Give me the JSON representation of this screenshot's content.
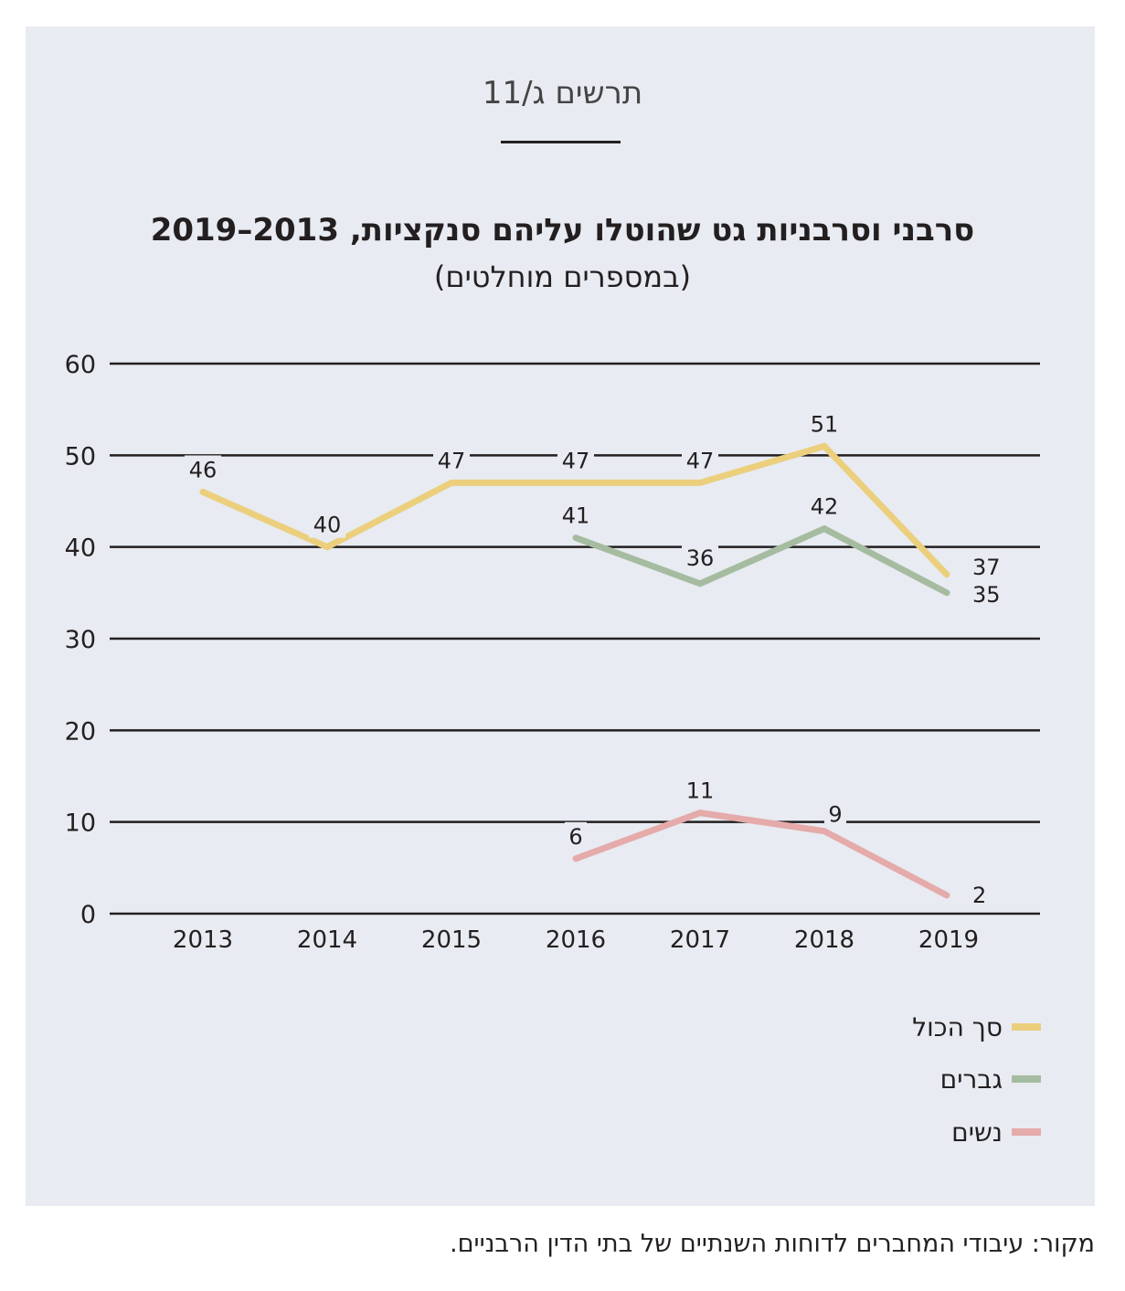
{
  "figure_label": "תרשים ג/11",
  "chart_data": {
    "type": "line",
    "title": "סרבני וסרבניות גט שהוטלו עליהם סנקציות, 2013–2019",
    "subtitle": "(במספרים מוחלטים)",
    "categories": [
      "2013",
      "2014",
      "2015",
      "2016",
      "2017",
      "2018",
      "2019"
    ],
    "ylim": [
      0,
      60
    ],
    "yticks": [
      "0",
      "10",
      "20",
      "30",
      "40",
      "50",
      "60"
    ],
    "grid": true,
    "legend_position": "bottom-right",
    "series": [
      {
        "name": "סך הכול",
        "color": "#ebcf7d",
        "values": [
          46,
          40,
          47,
          47,
          47,
          51,
          37
        ]
      },
      {
        "name": "גברים",
        "color": "#a6bca1",
        "values": [
          null,
          null,
          null,
          41,
          36,
          42,
          35
        ]
      },
      {
        "name": "נשים",
        "color": "#e5aaaa",
        "values": [
          null,
          null,
          null,
          6,
          11,
          9,
          2
        ]
      }
    ]
  },
  "source": "מקור: עיבודי המחברים לדוחות השנתיים של בתי הדין הרבניים."
}
